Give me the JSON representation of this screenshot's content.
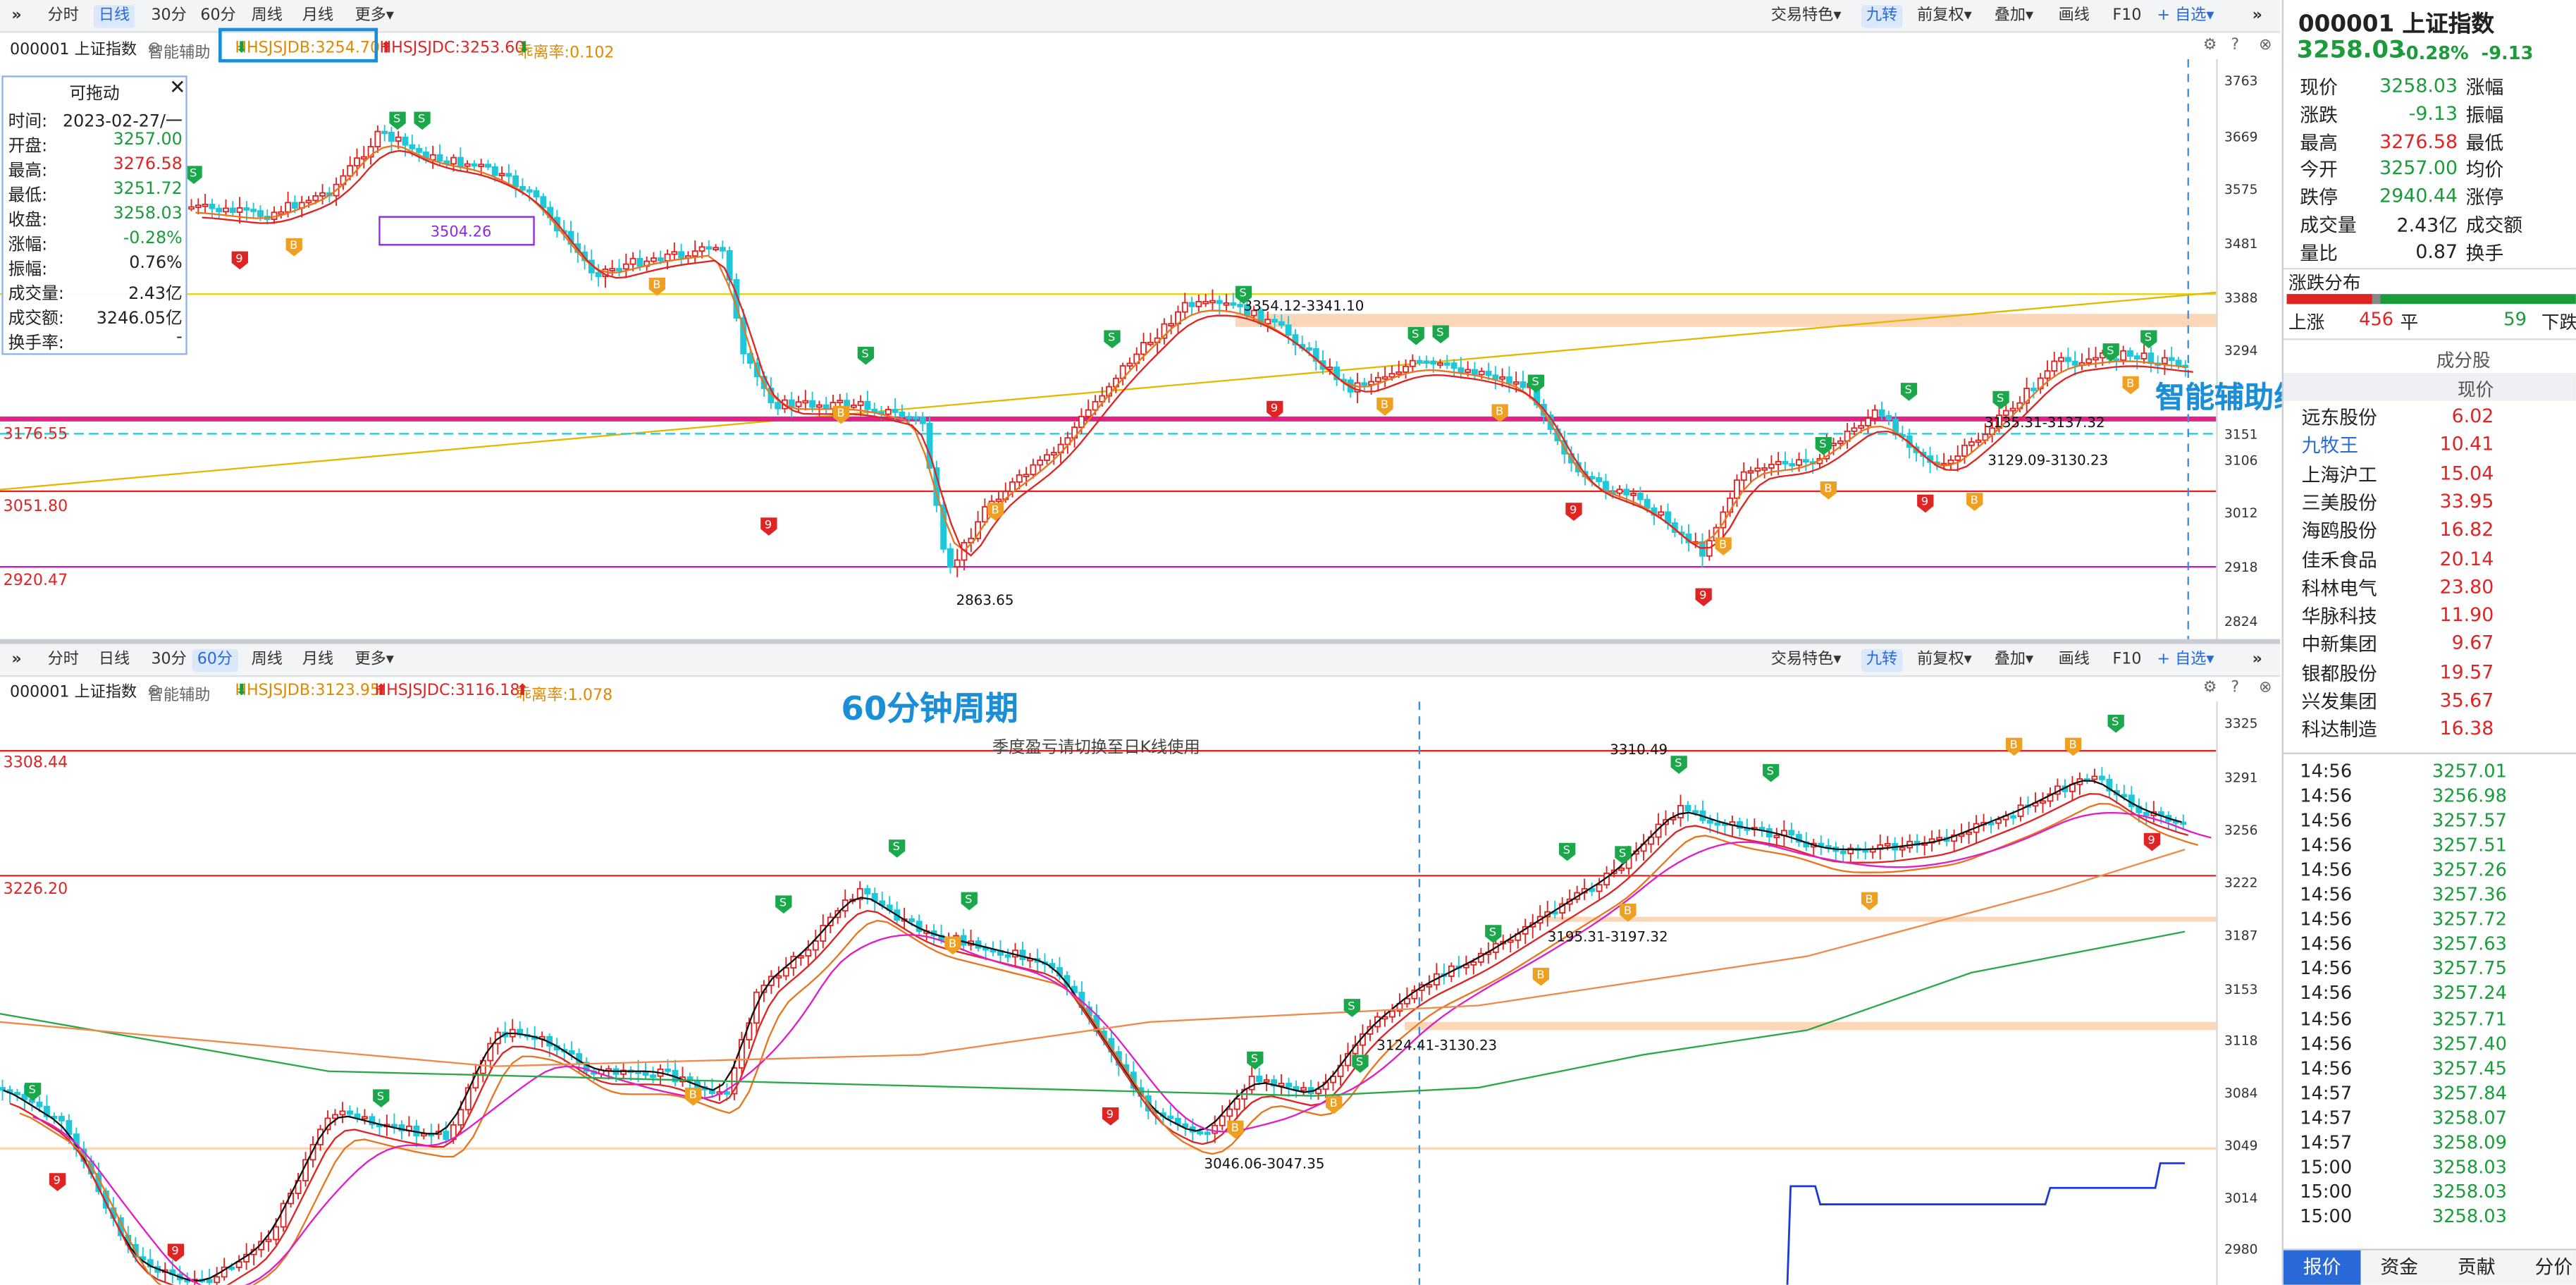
{
  "top_toolbar": {
    "expand_icon": "»",
    "periods": [
      "分时",
      "日线",
      "30分",
      "60分",
      "周线",
      "月线",
      "更多"
    ],
    "active_period": "日线",
    "right_items": [
      "交易特色",
      "九转",
      "前复权",
      "叠加",
      "画线",
      "F10",
      "自选"
    ],
    "collapse_icon": "»"
  },
  "top_info": {
    "symbol": "000001 上证指数",
    "indicator": "智能辅助",
    "jdb": "HHSJSJDB:3254.70",
    "jdc": "HHSJSJDC:3253.60",
    "xfl": "乖离率:0.102"
  },
  "top_chart": {
    "price_ticks": [
      "3763",
      "3669",
      "3575",
      "3481",
      "3388",
      "3294",
      "3151",
      "3106",
      "3012",
      "2918",
      "2824"
    ],
    "line_labels": [
      "3176.55",
      "3051.80",
      "2920.47"
    ],
    "rect_label": "3504.26",
    "annotations": [
      "3354.12-3341.10",
      "2863.65",
      "3135.31-3137.32",
      "3129.09-3130.23"
    ],
    "watermark": "智能辅助线支撑"
  },
  "tooltip": {
    "title": "可拖动",
    "rows": [
      {
        "label": "时间:",
        "value": "2023-02-27/一",
        "color": "#222222"
      },
      {
        "label": "开盘:",
        "value": "3257.00",
        "color": "#1a9c3a"
      },
      {
        "label": "最高:",
        "value": "3276.58",
        "color": "#e02424"
      },
      {
        "label": "最低:",
        "value": "3251.72",
        "color": "#1a9c3a"
      },
      {
        "label": "收盘:",
        "value": "3258.03",
        "color": "#1a9c3a"
      },
      {
        "label": "涨幅:",
        "value": "-0.28%",
        "color": "#1a9c3a"
      },
      {
        "label": "振幅:",
        "value": "0.76%",
        "color": "#222222"
      },
      {
        "label": "成交量:",
        "value": "2.43亿",
        "color": "#222222"
      },
      {
        "label": "成交额:",
        "value": "3246.05亿",
        "color": "#222222"
      },
      {
        "label": "换手率:",
        "value": "-",
        "color": "#222222"
      }
    ]
  },
  "bottom_toolbar": {
    "periods": [
      "分时",
      "日线",
      "30分",
      "60分",
      "周线",
      "月线",
      "更多"
    ],
    "active_period": "60分",
    "right_items": [
      "交易特色",
      "九转",
      "前复权",
      "叠加",
      "画线",
      "F10",
      "自选"
    ]
  },
  "bottom_info": {
    "symbol": "000001 上证指数",
    "indicator": "智能辅助",
    "jdb": "HHSJSJDB:3123.95",
    "jdc": "HHSJSJDC:3116.18",
    "xfl": "乖离率:1.078"
  },
  "bottom_chart": {
    "price_ticks": [
      "3325",
      "3291",
      "3256",
      "3222",
      "3187",
      "3153",
      "3118",
      "3084",
      "3049",
      "3014",
      "2980"
    ],
    "line_labels": [
      "3308.44",
      "3226.20"
    ],
    "title_overlay": "60分钟周期",
    "notice": "季度盈亏请切换至日K线使用",
    "annotations": [
      "3310.49",
      "3195.31-3197.32",
      "3124.41-3130.23",
      "3046.06-3047.35"
    ]
  },
  "quote": {
    "code_name": "000001 上证指数",
    "price": "3258.03",
    "change": "-0.28%  -9.13",
    "rows": [
      {
        "label": "现价",
        "value": "3258.03",
        "color": "#1a9c3a",
        "label2": "涨幅"
      },
      {
        "label": "涨跌",
        "value": "-9.13",
        "color": "#1a9c3a",
        "label2": "振幅"
      },
      {
        "label": "最高",
        "value": "3276.58",
        "color": "#e02424",
        "label2": "最低"
      },
      {
        "label": "今开",
        "value": "3257.00",
        "color": "#1a9c3a",
        "label2": "均价"
      },
      {
        "label": "跌停",
        "value": "2940.44",
        "color": "#1a9c3a",
        "label2": "涨停"
      },
      {
        "label": "成交量",
        "value": "2.43亿",
        "color": "#222222",
        "label2": "成交额"
      },
      {
        "label": "量比",
        "value": "0.87",
        "color": "#222222",
        "label2": "换手"
      }
    ],
    "dist_title": "涨跌分布",
    "up_label": "上涨",
    "up_count": "456",
    "flat_label": "平",
    "flat_count": "59",
    "down_label": "下跌",
    "components_title": "成分股",
    "price_header": "现价"
  },
  "components": [
    {
      "name": "远东股份",
      "price": "6.02",
      "name_color": "#222222"
    },
    {
      "name": "九牧王",
      "price": "10.41",
      "name_color": "#2a6ad8"
    },
    {
      "name": "上海沪工",
      "price": "15.04",
      "name_color": "#222222"
    },
    {
      "name": "三美股份",
      "price": "33.95",
      "name_color": "#222222"
    },
    {
      "name": "海鸥股份",
      "price": "16.82",
      "name_color": "#222222"
    },
    {
      "name": "佳禾食品",
      "price": "20.14",
      "name_color": "#222222"
    },
    {
      "name": "科林电气",
      "price": "23.80",
      "name_color": "#222222"
    },
    {
      "name": "华脉科技",
      "price": "11.90",
      "name_color": "#222222"
    },
    {
      "name": "中新集团",
      "price": "9.67",
      "name_color": "#222222"
    },
    {
      "name": "银都股份",
      "price": "19.57",
      "name_color": "#222222"
    },
    {
      "name": "兴发集团",
      "price": "35.67",
      "name_color": "#222222"
    },
    {
      "name": "科达制造",
      "price": "16.38",
      "name_color": "#222222"
    }
  ],
  "ticks": [
    {
      "time": "14:56",
      "price": "3257.01"
    },
    {
      "time": "14:56",
      "price": "3256.98"
    },
    {
      "time": "14:56",
      "price": "3257.57"
    },
    {
      "time": "14:56",
      "price": "3257.51"
    },
    {
      "time": "14:56",
      "price": "3257.26"
    },
    {
      "time": "14:56",
      "price": "3257.36"
    },
    {
      "time": "14:56",
      "price": "3257.72"
    },
    {
      "time": "14:56",
      "price": "3257.63"
    },
    {
      "time": "14:56",
      "price": "3257.75"
    },
    {
      "time": "14:56",
      "price": "3257.24"
    },
    {
      "time": "14:56",
      "price": "3257.71"
    },
    {
      "time": "14:56",
      "price": "3257.40"
    },
    {
      "time": "14:56",
      "price": "3257.45"
    },
    {
      "time": "14:57",
      "price": "3257.84"
    },
    {
      "time": "14:57",
      "price": "3258.07"
    },
    {
      "time": "14:57",
      "price": "3258.09"
    },
    {
      "time": "15:00",
      "price": "3258.03"
    },
    {
      "time": "15:00",
      "price": "3258.03"
    },
    {
      "time": "15:00",
      "price": "3258.03"
    }
  ],
  "bottom_tabs": [
    "报价",
    "资金",
    "贡献",
    "分价"
  ],
  "colors": {
    "up": "#e02424",
    "down": "#1a9c3a",
    "cyan": "#1ec8d8",
    "accent": "#2a6ad8",
    "magenta": "#e0218a"
  }
}
